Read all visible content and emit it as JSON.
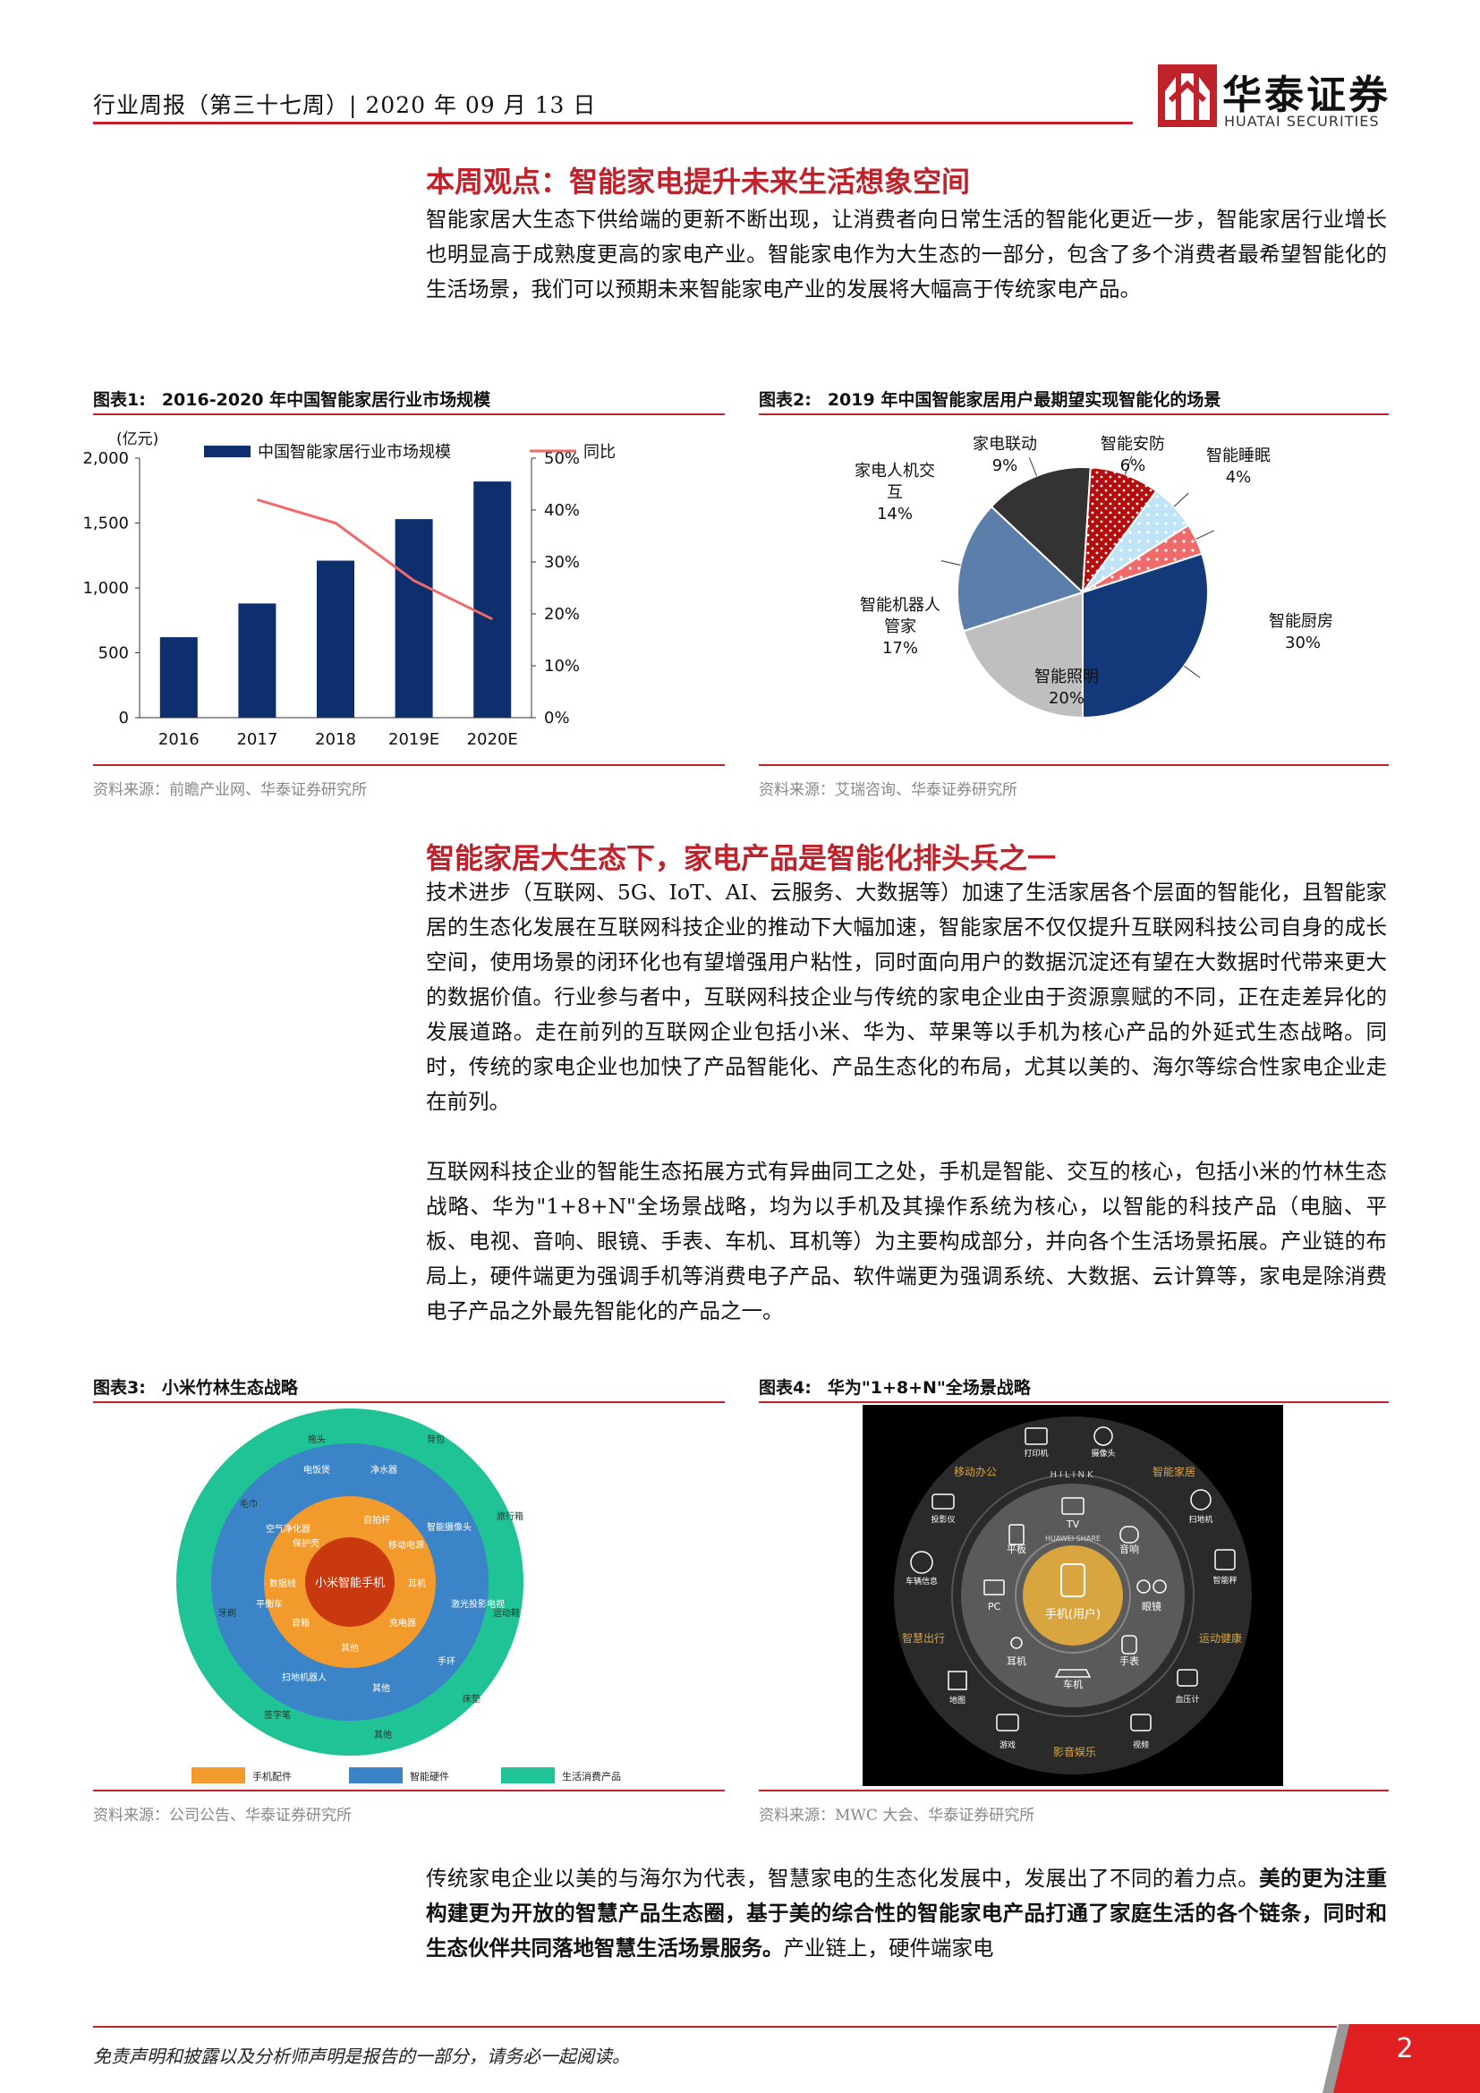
{
  "header": {
    "report_line": "行业周报（第三十七周）| 2020 年 09 月 13 日",
    "logo_cn": "华泰证券",
    "logo_en": "HUATAI SECURITIES",
    "brand_color": "#c0222c"
  },
  "section1": {
    "title": "本周观点：智能家电提升未来生活想象空间",
    "body": "智能家居大生态下供给端的更新不断出现，让消费者向日常生活的智能化更近一步，智能家居行业增长也明显高于成熟度更高的家电产业。智能家电作为大生态的一部分，包含了多个消费者最希望智能化的生活场景，我们可以预期未来智能家电产业的发展将大幅高于传统家电产品。"
  },
  "fig1": {
    "label": "图表1:",
    "title": "2016-2020 年中国智能家居行业市场规模",
    "source": "资料来源：前瞻产业网、华泰证券研究所"
  },
  "fig2": {
    "label": "图表2:",
    "title": "2019 年中国智能家居用户最期望实现智能化的场景",
    "source": "资料来源：艾瑞咨询、华泰证券研究所"
  },
  "section2": {
    "title": "智能家居大生态下，家电产品是智能化排头兵之一",
    "para1": "技术进步（互联网、5G、IoT、AI、云服务、大数据等）加速了生活家居各个层面的智能化，且智能家居的生态化发展在互联网科技企业的推动下大幅加速，智能家居不仅仅提升互联网科技公司自身的成长空间，使用场景的闭环化也有望增强用户粘性，同时面向用户的数据沉淀还有望在大数据时代带来更大的数据价值。行业参与者中，互联网科技企业与传统的家电企业由于资源禀赋的不同，正在走差异化的发展道路。走在前列的互联网企业包括小米、华为、苹果等以手机为核心产品的外延式生态战略。同时，传统的家电企业也加快了产品智能化、产品生态化的布局，尤其以美的、海尔等综合性家电企业走在前列。",
    "para2": "互联网科技企业的智能生态拓展方式有异曲同工之处，手机是智能、交互的核心，包括小米的竹林生态战略、华为\"1+8+N\"全场景战略，均为以手机及其操作系统为核心，以智能的科技产品（电脑、平板、电视、音响、眼镜、手表、车机、耳机等）为主要构成部分，并向各个生活场景拓展。产业链的布局上，硬件端更为强调手机等消费电子产品、软件端更为强调系统、大数据、云计算等，家电是除消费电子产品之外最先智能化的产品之一。"
  },
  "fig3": {
    "label": "图表3:",
    "title": "小米竹林生态战略",
    "source": "资料来源：公司公告、华泰证券研究所",
    "center": "小米智能手机",
    "inner_items": [
      "自拍杆",
      "移动电源",
      "耳机",
      "充电器",
      "其他",
      "音箱",
      "数据线",
      "保护壳"
    ],
    "middle_items": [
      "电饭煲",
      "净水器",
      "智能摄像头",
      "激光投影电视",
      "手环",
      "其他",
      "扫地机器人",
      "平衡车",
      "空气净化器"
    ],
    "outer_items": [
      "拖头",
      "背包",
      "旅行箱",
      "运动鞋",
      "床垫",
      "其他",
      "签字笔",
      "牙刷",
      "毛巾"
    ],
    "legend": [
      "手机配件",
      "智能硬件",
      "生活消费产品"
    ],
    "colors": {
      "center": "#c8390f",
      "inner": "#f39a2c",
      "middle": "#3b84c8",
      "outer": "#1fc395"
    }
  },
  "fig4": {
    "label": "图表4:",
    "title": "华为\"1+8+N\"全场景战略",
    "source": "资料来源：MWC 大会、华泰证券研究所",
    "center": "手机(用户)",
    "ring8": [
      "TV",
      "音响",
      "眼镜",
      "手表",
      "车机",
      "耳机",
      "PC",
      "平板"
    ],
    "outer": [
      "打印机",
      "摄像头",
      "扫地机",
      "智能秤",
      "血压计",
      "视频",
      "游戏",
      "地图",
      "车辆信息",
      "投影仪"
    ],
    "sectors": [
      "移动办公",
      "智能家居",
      "运动健康",
      "影音娱乐",
      "智慧出行"
    ],
    "hilink": "HILINK",
    "share": "HUAWEI SHARE"
  },
  "section3": {
    "lead": "传统家电企业以美的与海尔为代表，智慧家电的生态化发展中，发展出了不同的着力点。",
    "bold": "美的更为注重构建更为开放的智慧产品生态圈，基于美的综合性的智能家电产品打通了家庭生活的各个链条，同时和生态伙伴共同落地智慧生活场景服务。",
    "tail": "产业链上，硬件端家电"
  },
  "footer": {
    "disclaimer": "免责声明和披露以及分析师声明是报告的一部分，请务必一起阅读。",
    "page": "2"
  },
  "chart_data": [
    {
      "type": "bar",
      "categories": [
        "2016",
        "2017",
        "2018",
        "2019E",
        "2020E"
      ],
      "series": [
        {
          "name": "中国智能家居行业市场规模",
          "axis": "left",
          "kind": "bar",
          "color": "#0d2f6e",
          "values": [
            620,
            880,
            1210,
            1530,
            1820
          ]
        },
        {
          "name": "同比",
          "axis": "right",
          "kind": "line",
          "color": "#f06a6a",
          "values": [
            null,
            42,
            37.5,
            26.4,
            19
          ]
        }
      ],
      "ylabel": "(亿元)",
      "ylim": [
        0,
        2000
      ],
      "yticks": [
        "0",
        "500",
        "1,000",
        "1,500",
        "2,000"
      ],
      "y2lim": [
        0,
        50
      ],
      "y2ticks": [
        "0%",
        "10%",
        "20%",
        "30%",
        "40%",
        "50%"
      ],
      "legend": "top"
    },
    {
      "type": "pie",
      "slices": [
        {
          "label": "智能厨房",
          "value": 30,
          "pct": "30%",
          "color": "#13397a"
        },
        {
          "label": "智能照明",
          "value": 20,
          "pct": "20%",
          "color": "#bfbfbf"
        },
        {
          "label": "智能机器人管家",
          "value": 17,
          "pct": "17%",
          "color": "#5b7faa"
        },
        {
          "label": "家电人机交互",
          "value": 14,
          "pct": "14%",
          "color": "#333333"
        },
        {
          "label": "家电联动",
          "value": 9,
          "pct": "9%",
          "color": "#b50d0d"
        },
        {
          "label": "智能安防",
          "value": 6,
          "pct": "6%",
          "color": "#bfe3f7"
        },
        {
          "label": "智能睡眠",
          "value": 4,
          "pct": "4%",
          "color": "#f06a6a"
        }
      ]
    }
  ]
}
